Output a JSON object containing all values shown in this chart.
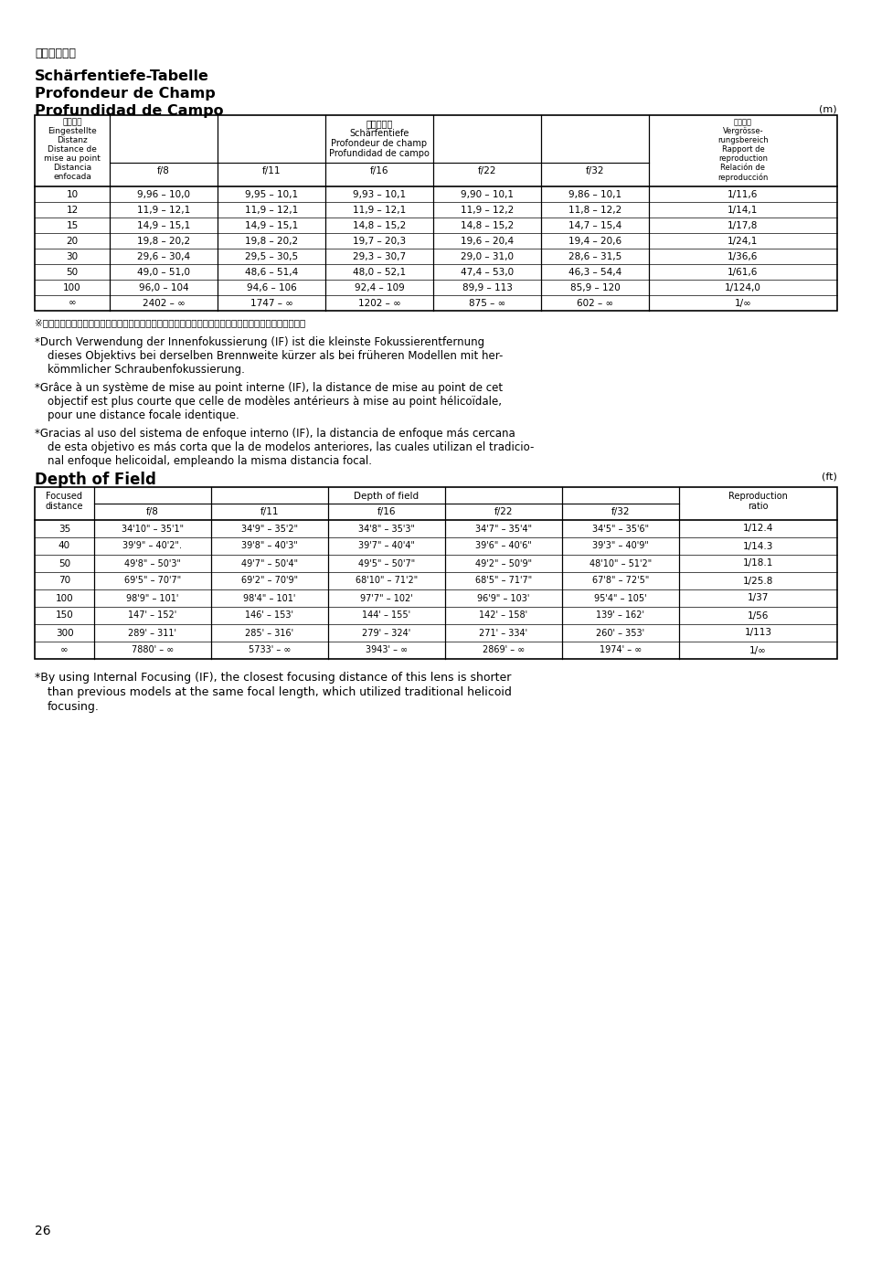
{
  "title_japanese": "被写界深度表",
  "title_german": "Schärfentiefe-Tabelle",
  "title_french": "Profondeur de Champ",
  "title_spanish": "Profundidad de Campo",
  "unit_top": "(m)",
  "unit_bottom": "(ft)",
  "page_number": "26",
  "table1_col_header_left_lines": [
    "摂影距離",
    "Eingestellte",
    "Distanz",
    "Distance de",
    "mise au point",
    "Distancia",
    "enfocada"
  ],
  "table1_col_header_center_lines": [
    "被写界深度",
    "Schärfentiefe",
    "Profondeur de champ",
    "Profundidad de campo"
  ],
  "table1_col_header_right_lines": [
    "摂影倍率",
    "Vergrösse-",
    "rungsbereich",
    "Rapport de",
    "reproduction",
    "Relación de",
    "reproducción"
  ],
  "table1_apertures": [
    "f/8",
    "f/11",
    "f/16",
    "f/22",
    "f/32"
  ],
  "table1_rows": [
    [
      "10",
      "9,96 – 10,0",
      "9,95 – 10,1",
      "9,93 – 10,1",
      "9,90 – 10,1",
      "9,86 – 10,1",
      "1/11,6"
    ],
    [
      "12",
      "11,9 – 12,1",
      "11,9 – 12,1",
      "11,9 – 12,1",
      "11,9 – 12,2",
      "11,8 – 12,2",
      "1/14,1"
    ],
    [
      "15",
      "14,9 – 15,1",
      "14,9 – 15,1",
      "14,8 – 15,2",
      "14,8 – 15,2",
      "14,7 – 15,4",
      "1/17,8"
    ],
    [
      "20",
      "19,8 – 20,2",
      "19,8 – 20,2",
      "19,7 – 20,3",
      "19,6 – 20,4",
      "19,4 – 20,6",
      "1/24,1"
    ],
    [
      "30",
      "29,6 – 30,4",
      "29,5 – 30,5",
      "29,3 – 30,7",
      "29,0 – 31,0",
      "28,6 – 31,5",
      "1/36,6"
    ],
    [
      "50",
      "49,0 – 51,0",
      "48,6 – 51,4",
      "48,0 – 52,1",
      "47,4 – 53,0",
      "46,3 – 54,4",
      "1/61,6"
    ],
    [
      "100",
      "96,0 – 104",
      "94,6 – 106",
      "92,4 – 109",
      "89,9 – 113",
      "85,9 – 120",
      "1/124,0"
    ],
    [
      "∞",
      "2402 – ∞",
      "1747 – ∞",
      "1202 – ∞",
      "875 – ∞",
      "602 – ∞",
      "1/∞"
    ]
  ],
  "note_japanese": "※ニコン内焦方式は、通常のレンズとは異なる為、至近距離になると焦点距離がわずかに短くなります。",
  "note_german_line1": "*Durch Verwendung der Innenfokussierung (IF) ist die kleinste Fokussierentfernung",
  "note_german_line2": "dieses Objektivs bei derselben Brennweite kürzer als bei früheren Modellen mit her-",
  "note_german_line3": "kömmlicher Schraubenfokussierung.",
  "note_french_line1": "*Grâce à un système de mise au point interne (IF), la distance de mise au point de cet",
  "note_french_line2": "objectif est plus courte que celle de modèles antérieurs à mise au point hélicoïdale,",
  "note_french_line3": "pour une distance focale identique.",
  "note_spanish_line1": "*Gracias al uso del sistema de enfoque interno (IF), la distancia de enfoque más cercana",
  "note_spanish_line2": "de esta objetivo es más corta que la de modelos anteriores, las cuales utilizan el tradicio-",
  "note_spanish_line3": "nal enfoque helicoidal, empleando la misma distancia focal.",
  "section2_title": "Depth of Field",
  "table2_apertures": [
    "f/8",
    "f/11",
    "f/16",
    "f/22",
    "f/32"
  ],
  "table2_rows": [
    [
      "35",
      "34'10\" – 35'1\"",
      "34'9\" – 35'2\"",
      "34'8\" – 35'3\"",
      "34'7\" – 35'4\"",
      "34'5\" – 35'6\"",
      "1/12.4"
    ],
    [
      "40",
      "39'9\" – 40'2\".",
      "39'8\" – 40'3\"",
      "39'7\" – 40'4\"",
      "39'6\" – 40'6\"",
      "39'3\" – 40'9\"",
      "1/14.3"
    ],
    [
      "50",
      "49'8\" – 50'3\"",
      "49'7\" – 50'4\"",
      "49'5\" – 50'7\"",
      "49'2\" – 50'9\"",
      "48'10\" – 51'2\"",
      "1/18.1"
    ],
    [
      "70",
      "69'5\" – 70'7\"",
      "69'2\" – 70'9\"",
      "68'10\" – 71'2\"",
      "68'5\" – 71'7\"",
      "67'8\" – 72'5\"",
      "1/25.8"
    ],
    [
      "100",
      "98'9\" – 101'",
      "98'4\" – 101'",
      "97'7\" – 102'",
      "96'9\" – 103'",
      "95'4\" – 105'",
      "1/37"
    ],
    [
      "150",
      "147' – 152'",
      "146' – 153'",
      "144' – 155'",
      "142' – 158'",
      "139' – 162'",
      "1/56"
    ],
    [
      "300",
      "289' – 311'",
      "285' – 316'",
      "279' – 324'",
      "271' – 334'",
      "260' – 353'",
      "1/113"
    ],
    [
      "∞",
      "7880' – ∞",
      "5733' – ∞",
      "3943' – ∞",
      "2869' – ∞",
      "1974' – ∞",
      "1/∞"
    ]
  ],
  "note_english_line1": "*By using Internal Focusing (IF), the closest focusing distance of this lens is shorter",
  "note_english_line2": "than previous models at the same focal length, which utilized traditional helicoid",
  "note_english_line3": "focusing."
}
